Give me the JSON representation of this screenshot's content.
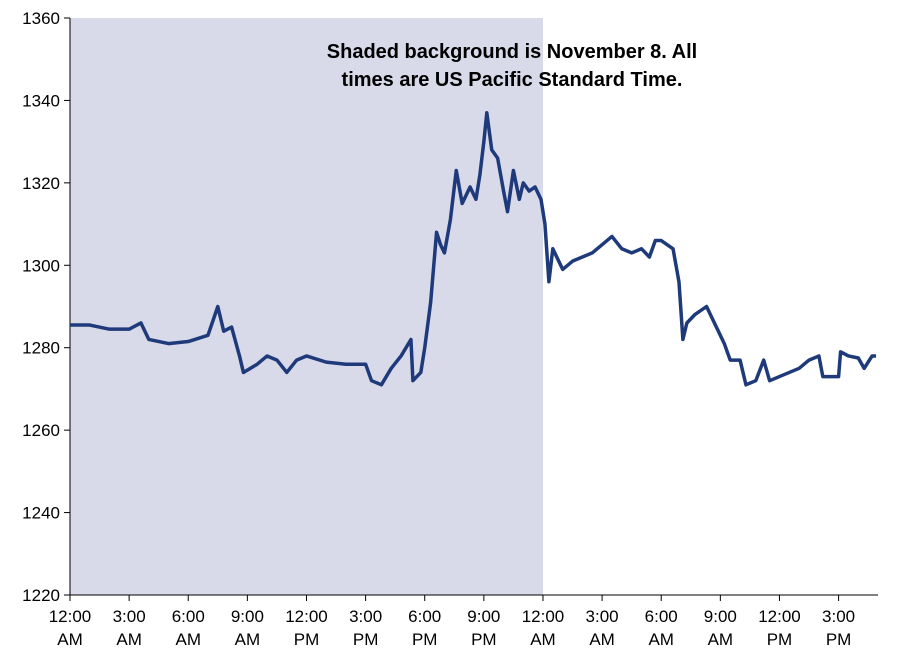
{
  "chart_data": {
    "type": "line",
    "annotation": [
      "Shaded background is November 8. All",
      "times are US Pacific Standard Time."
    ],
    "shaded_xrange": [
      0,
      24
    ],
    "shade_color": "#d8dae9",
    "xlim": [
      0,
      41
    ],
    "ylim": [
      1220,
      1360
    ],
    "yticks": [
      1220,
      1240,
      1260,
      1280,
      1300,
      1320,
      1340,
      1360
    ],
    "xticks": [
      {
        "value": 0,
        "label": "12:00 AM"
      },
      {
        "value": 3,
        "label": "3:00 AM"
      },
      {
        "value": 6,
        "label": "6:00 AM"
      },
      {
        "value": 9,
        "label": "9:00 AM"
      },
      {
        "value": 12,
        "label": "12:00 PM"
      },
      {
        "value": 15,
        "label": "3:00 PM"
      },
      {
        "value": 18,
        "label": "6:00 PM"
      },
      {
        "value": 21,
        "label": "9:00 PM"
      },
      {
        "value": 24,
        "label": "12:00 AM"
      },
      {
        "value": 27,
        "label": "3:00 AM"
      },
      {
        "value": 30,
        "label": "6:00 AM"
      },
      {
        "value": 33,
        "label": "9:00 AM"
      },
      {
        "value": 36,
        "label": "12:00 PM"
      },
      {
        "value": 39,
        "label": "3:00 PM"
      }
    ],
    "grid": false,
    "x": [
      0,
      1,
      2,
      3,
      3.6,
      4,
      5,
      6,
      7,
      7.5,
      7.8,
      8.2,
      8.6,
      8.8,
      9.5,
      10,
      10.5,
      11,
      11.5,
      12,
      13,
      14,
      15,
      15.3,
      15.8,
      16.3,
      16.8,
      17.3,
      17.4,
      17.8,
      18,
      18.3,
      18.6,
      18.8,
      19,
      19.3,
      19.6,
      19.9,
      20.3,
      20.6,
      20.8,
      21,
      21.15,
      21.4,
      21.7,
      22,
      22.2,
      22.5,
      22.8,
      23,
      23.3,
      23.6,
      23.9,
      24.1,
      24.3,
      24.5,
      25,
      25.5,
      26,
      26.5,
      27,
      27.5,
      28,
      28.5,
      29,
      29.4,
      29.7,
      30,
      30.3,
      30.6,
      30.9,
      31.1,
      31.3,
      31.7,
      32.3,
      32.8,
      33.2,
      33.5,
      34,
      34.3,
      34.8,
      35.2,
      35.5,
      36,
      36.5,
      37,
      37.5,
      38,
      38.2,
      39,
      39.1,
      39.5,
      40,
      40.3,
      40.7,
      40.9
    ],
    "series": [
      {
        "color": "#1f3a7a",
        "values": [
          1285.5,
          1285.5,
          1284.5,
          1284.5,
          1286,
          1282,
          1281,
          1281.5,
          1283,
          1290,
          1284,
          1285,
          1278,
          1274,
          1276,
          1278,
          1277,
          1274,
          1277,
          1278,
          1276.5,
          1276,
          1276,
          1272,
          1271,
          1275,
          1278,
          1282,
          1272,
          1274,
          1280,
          1291,
          1308,
          1305,
          1303,
          1311,
          1323,
          1315,
          1319,
          1316,
          1322,
          1330,
          1337,
          1328,
          1326,
          1318,
          1313,
          1323,
          1316,
          1320,
          1318,
          1319,
          1316,
          1310,
          1296,
          1304,
          1299,
          1301,
          1302,
          1303,
          1305,
          1307,
          1304,
          1303,
          1304,
          1302,
          1306,
          1306,
          1305,
          1304,
          1296,
          1282,
          1286,
          1288,
          1290,
          1285,
          1281,
          1277,
          1277,
          1271,
          1272,
          1277,
          1272,
          1273,
          1274,
          1275,
          1277,
          1278,
          1273,
          1273,
          1279,
          1278,
          1277.5,
          1275,
          1278,
          1278
        ]
      }
    ]
  }
}
